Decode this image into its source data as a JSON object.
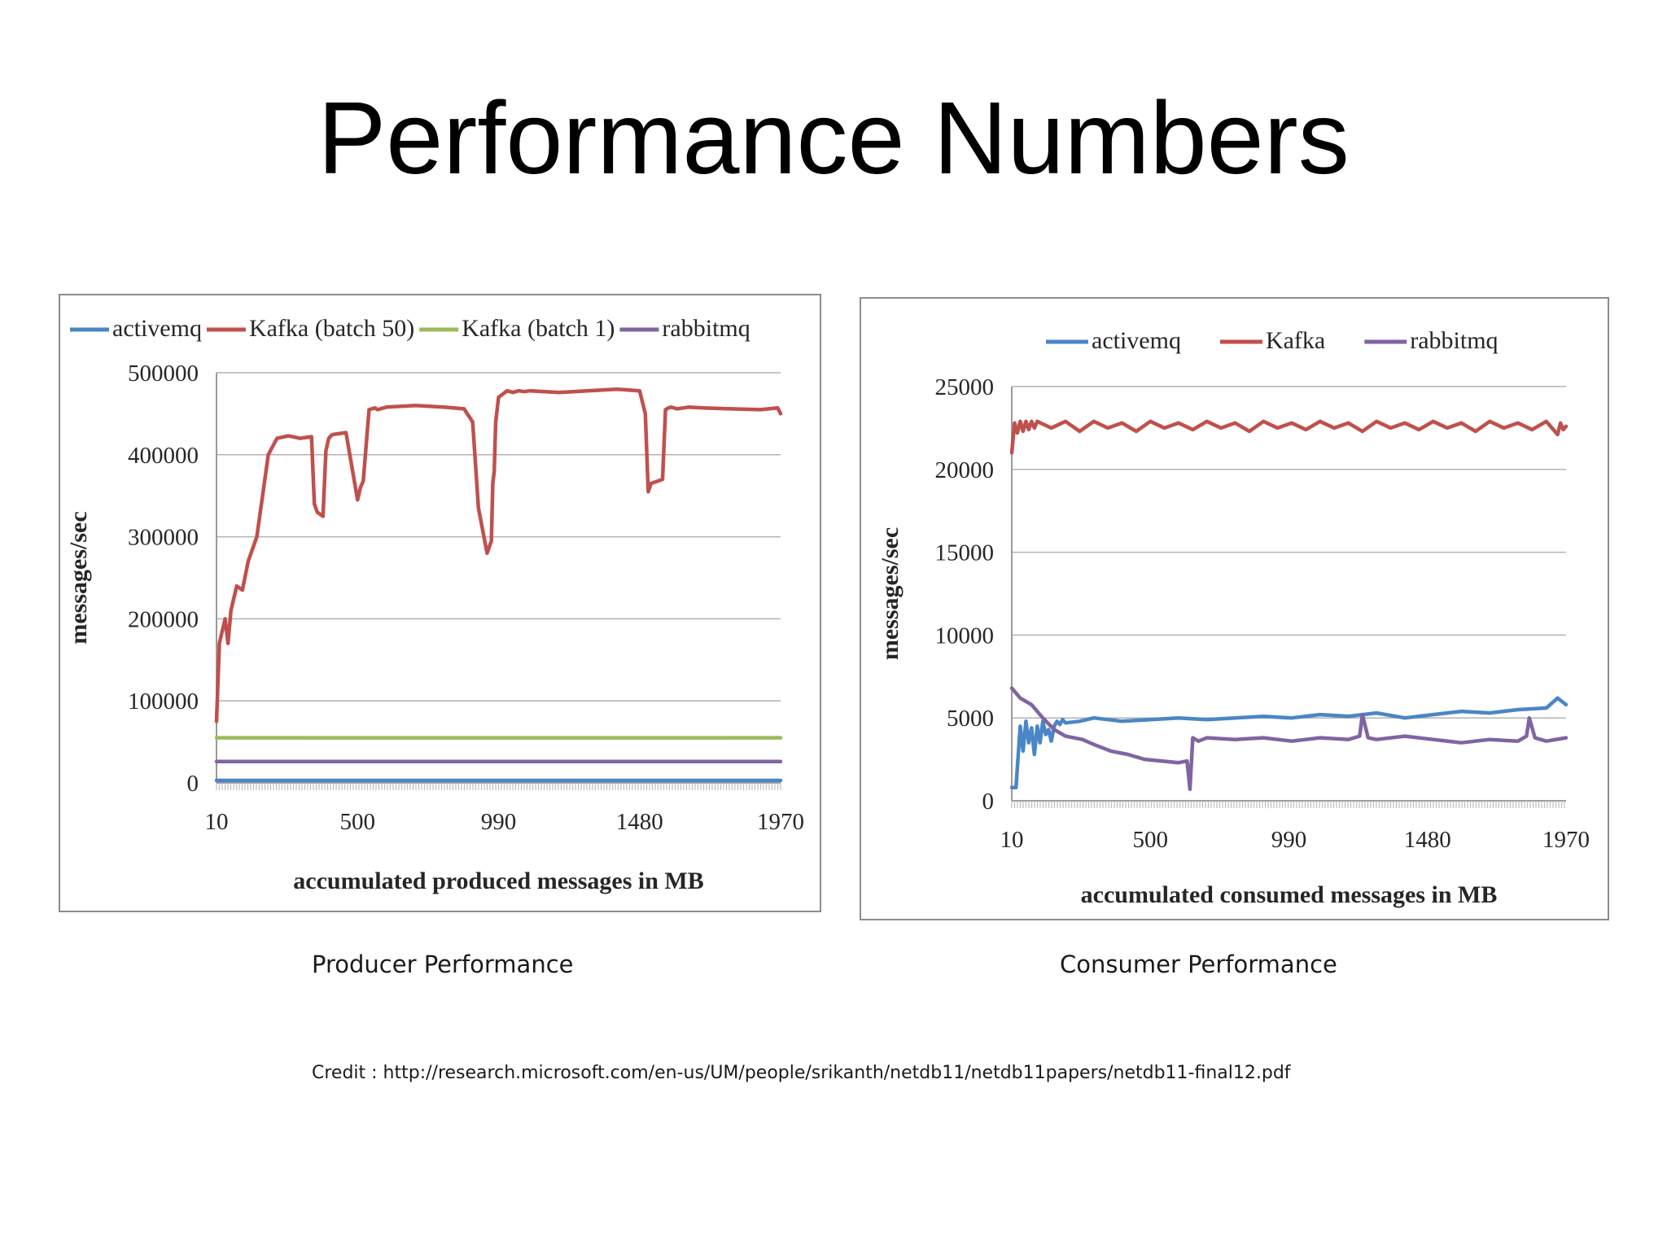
{
  "slide": {
    "title": "Performance Numbers",
    "credit": "Credit : http://research.microsoft.com/en-us/UM/people/srikanth/netdb11/netdb11papers/netdb11-final12.pdf"
  },
  "captions": {
    "producer": "Producer Performance",
    "consumer": "Consumer Performance"
  },
  "chart_data": [
    {
      "type": "line",
      "xlabel": "accumulated produced messages in MB",
      "ylabel": "messages/sec",
      "ylim": [
        0,
        500000
      ],
      "xlim": [
        10,
        1970
      ],
      "x_ticks": [
        "10",
        "500",
        "990",
        "1480",
        "1970"
      ],
      "y_ticks": [
        "0",
        "100000",
        "200000",
        "300000",
        "400000",
        "500000"
      ],
      "grid": true,
      "legend_position": "top",
      "series": [
        {
          "name": "activemq",
          "color": "#4a86c5",
          "x": [
            10,
            1970
          ],
          "y": [
            3000,
            3000
          ]
        },
        {
          "name": "Kafka (batch 50)",
          "color": "#c0504d",
          "x": [
            10,
            20,
            40,
            50,
            60,
            80,
            100,
            120,
            150,
            170,
            190,
            220,
            260,
            300,
            340,
            350,
            360,
            380,
            390,
            400,
            410,
            420,
            460,
            500,
            510,
            520,
            540,
            560,
            570,
            600,
            700,
            800,
            870,
            900,
            920,
            950,
            965,
            970,
            975,
            980,
            990,
            1020,
            1040,
            1060,
            1080,
            1100,
            1200,
            1300,
            1400,
            1480,
            1500,
            1510,
            1520,
            1560,
            1570,
            1580,
            1590,
            1610,
            1650,
            1700,
            1800,
            1900,
            1960,
            1970
          ],
          "y": [
            75000,
            170000,
            200000,
            170000,
            210000,
            240000,
            235000,
            270000,
            300000,
            350000,
            400000,
            420000,
            423000,
            420000,
            422000,
            340000,
            330000,
            325000,
            405000,
            420000,
            424000,
            425000,
            427000,
            345000,
            360000,
            368000,
            455000,
            457000,
            455000,
            458000,
            460000,
            458000,
            456000,
            440000,
            335000,
            280000,
            295000,
            365000,
            380000,
            440000,
            470000,
            478000,
            476000,
            478000,
            477000,
            478000,
            476000,
            478000,
            480000,
            478000,
            450000,
            355000,
            365000,
            370000,
            455000,
            457000,
            458000,
            456000,
            458000,
            457000,
            456000,
            455000,
            457000,
            450000
          ]
        },
        {
          "name": "Kafka (batch 1)",
          "color": "#9bbb59",
          "x": [
            10,
            1970
          ],
          "y": [
            55000,
            55000
          ]
        },
        {
          "name": "rabbitmq",
          "color": "#8064a2",
          "x": [
            10,
            1970
          ],
          "y": [
            26000,
            26000
          ]
        }
      ]
    },
    {
      "type": "line",
      "xlabel": "accumulated consumed messages in MB",
      "ylabel": "messages/sec",
      "ylim": [
        0,
        25000
      ],
      "xlim": [
        10,
        1970
      ],
      "x_ticks": [
        "10",
        "500",
        "990",
        "1480",
        "1970"
      ],
      "y_ticks": [
        "0",
        "5000",
        "10000",
        "15000",
        "20000",
        "25000"
      ],
      "grid": true,
      "legend_position": "top",
      "series": [
        {
          "name": "activemq",
          "color": "#4a86c5",
          "x": [
            10,
            25,
            40,
            50,
            60,
            70,
            80,
            90,
            100,
            110,
            120,
            130,
            140,
            150,
            160,
            170,
            180,
            190,
            200,
            250,
            300,
            400,
            500,
            600,
            700,
            800,
            900,
            1000,
            1100,
            1200,
            1300,
            1400,
            1500,
            1600,
            1700,
            1800,
            1900,
            1940,
            1970
          ],
          "y": [
            800,
            800,
            4500,
            3000,
            4800,
            3500,
            4400,
            2800,
            4500,
            3500,
            4800,
            4000,
            4300,
            3600,
            4500,
            4800,
            4600,
            4900,
            4700,
            4800,
            5000,
            4800,
            4900,
            5000,
            4900,
            5000,
            5100,
            5000,
            5200,
            5100,
            5300,
            5000,
            5200,
            5400,
            5300,
            5500,
            5600,
            6200,
            5800
          ]
        },
        {
          "name": "Kafka",
          "color": "#c0504d",
          "x": [
            10,
            20,
            30,
            40,
            50,
            60,
            70,
            80,
            90,
            100,
            150,
            200,
            250,
            300,
            350,
            400,
            450,
            500,
            550,
            600,
            650,
            700,
            750,
            800,
            850,
            900,
            950,
            1000,
            1050,
            1100,
            1150,
            1200,
            1250,
            1300,
            1350,
            1400,
            1450,
            1500,
            1550,
            1600,
            1650,
            1700,
            1750,
            1800,
            1850,
            1900,
            1940,
            1950,
            1960,
            1970
          ],
          "y": [
            21000,
            22800,
            22200,
            22900,
            22300,
            22900,
            22400,
            22900,
            22500,
            22900,
            22500,
            22900,
            22300,
            22900,
            22500,
            22800,
            22300,
            22900,
            22500,
            22800,
            22400,
            22900,
            22500,
            22800,
            22300,
            22900,
            22500,
            22800,
            22400,
            22900,
            22500,
            22800,
            22300,
            22900,
            22500,
            22800,
            22400,
            22900,
            22500,
            22800,
            22300,
            22900,
            22500,
            22800,
            22400,
            22900,
            22100,
            22800,
            22400,
            22600
          ]
        },
        {
          "name": "rabbitmq",
          "color": "#8064a2",
          "x": [
            10,
            40,
            80,
            120,
            160,
            200,
            260,
            300,
            360,
            420,
            480,
            540,
            600,
            630,
            640,
            650,
            670,
            700,
            800,
            900,
            1000,
            1100,
            1200,
            1240,
            1250,
            1270,
            1300,
            1400,
            1500,
            1600,
            1700,
            1800,
            1830,
            1840,
            1860,
            1900,
            1970
          ],
          "y": [
            6800,
            6200,
            5800,
            5000,
            4300,
            3900,
            3700,
            3400,
            3000,
            2800,
            2500,
            2400,
            2300,
            2400,
            700,
            3800,
            3600,
            3800,
            3700,
            3800,
            3600,
            3800,
            3700,
            3900,
            5200,
            3800,
            3700,
            3900,
            3700,
            3500,
            3700,
            3600,
            3900,
            5000,
            3800,
            3600,
            3800
          ]
        }
      ]
    }
  ]
}
